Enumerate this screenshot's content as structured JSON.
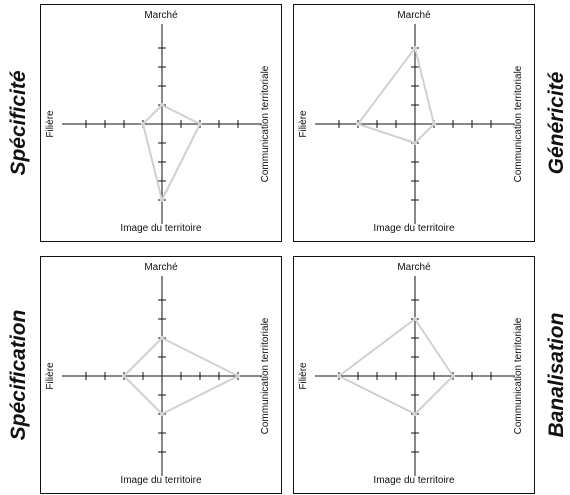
{
  "axis_labels": {
    "top": "Marché",
    "left": "Filière",
    "right": "Communication territoriale",
    "bottom": "Image du territoire"
  },
  "scale": {
    "ticks_per_axis": 4
  },
  "panels": [
    {
      "side_label": "Spécificité",
      "values": {
        "top": 1,
        "right": 2,
        "bottom": 4,
        "left": 1
      }
    },
    {
      "side_label": "Généricité",
      "values": {
        "top": 4,
        "right": 1,
        "bottom": 1,
        "left": 3
      }
    },
    {
      "side_label": "Spécification",
      "values": {
        "top": 2,
        "right": 4,
        "bottom": 2,
        "left": 2
      }
    },
    {
      "side_label": "Banalisation",
      "values": {
        "top": 3,
        "right": 2,
        "bottom": 2,
        "left": 4
      }
    }
  ],
  "colors": {
    "axis": "#111111",
    "polygon": "#d0d0d0",
    "border": "#111111"
  }
}
